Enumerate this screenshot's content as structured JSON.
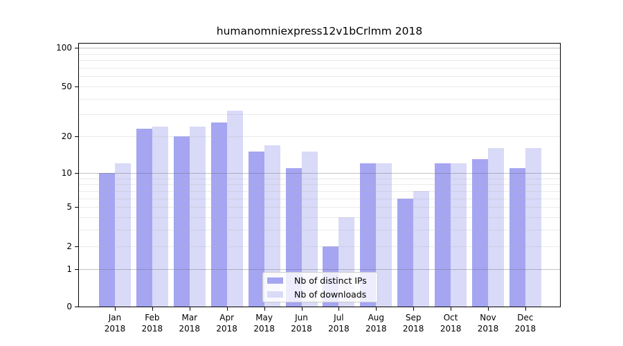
{
  "chart_data": {
    "type": "bar",
    "title": "humanomniexpress12v1bCrlmm 2018",
    "categories": [
      {
        "month": "Jan",
        "year": "2018"
      },
      {
        "month": "Feb",
        "year": "2018"
      },
      {
        "month": "Mar",
        "year": "2018"
      },
      {
        "month": "Apr",
        "year": "2018"
      },
      {
        "month": "May",
        "year": "2018"
      },
      {
        "month": "Jun",
        "year": "2018"
      },
      {
        "month": "Jul",
        "year": "2018"
      },
      {
        "month": "Aug",
        "year": "2018"
      },
      {
        "month": "Sep",
        "year": "2018"
      },
      {
        "month": "Oct",
        "year": "2018"
      },
      {
        "month": "Nov",
        "year": "2018"
      },
      {
        "month": "Dec",
        "year": "2018"
      }
    ],
    "series": [
      {
        "name": "Nb of distinct IPs",
        "color": "#a5a5f2",
        "values": [
          10,
          23,
          20,
          26,
          15,
          11,
          2,
          12,
          6,
          12,
          13,
          11
        ]
      },
      {
        "name": "Nb of downloads",
        "color": "#d9d9f8",
        "values": [
          12,
          24,
          24,
          32,
          17,
          15,
          4,
          12,
          7,
          12,
          16,
          16
        ]
      }
    ],
    "y_axis": {
      "scale": "log10(1+v)",
      "tick_values": [
        0,
        1,
        2,
        5,
        10,
        20,
        50,
        100
      ],
      "tick_labels": [
        "0",
        "1",
        "2",
        "5",
        "10",
        "20",
        "50",
        "100"
      ],
      "top_value": 110
    },
    "grid": {
      "major_lines": [
        1,
        10,
        100
      ],
      "minor_lines": [
        2,
        3,
        4,
        5,
        6,
        7,
        8,
        9,
        20,
        30,
        40,
        50,
        60,
        70,
        80,
        90
      ]
    },
    "legend": {
      "position": "inside-bottom-center"
    },
    "colors": {
      "background": "#ffffff",
      "axis": "#000000",
      "grid_major": "#c6c6c6",
      "grid_minor": "#ececec",
      "bar_distinct_ips": "#a5a5f2",
      "bar_downloads": "#d9d9f8"
    }
  }
}
